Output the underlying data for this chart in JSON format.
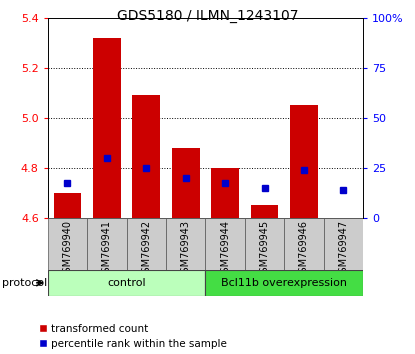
{
  "title": "GDS5180 / ILMN_1243107",
  "samples": [
    "GSM769940",
    "GSM769941",
    "GSM769942",
    "GSM769943",
    "GSM769944",
    "GSM769945",
    "GSM769946",
    "GSM769947"
  ],
  "red_values": [
    4.7,
    5.32,
    5.09,
    4.88,
    4.8,
    4.65,
    5.05,
    4.6
  ],
  "blue_values": [
    4.74,
    4.84,
    4.8,
    4.76,
    4.74,
    4.72,
    4.79,
    4.71
  ],
  "ylim_left": [
    4.6,
    5.4
  ],
  "ylim_right": [
    0,
    100
  ],
  "yticks_left": [
    4.6,
    4.8,
    5.0,
    5.2,
    5.4
  ],
  "yticks_right": [
    0,
    25,
    50,
    75,
    100
  ],
  "ytick_labels_right": [
    "0",
    "25",
    "50",
    "75",
    "100%"
  ],
  "bar_bottom": 4.6,
  "bar_color": "#cc0000",
  "dot_color": "#0000cc",
  "groups": [
    {
      "label": "control",
      "indices": [
        0,
        1,
        2,
        3
      ],
      "color": "#bbffbb"
    },
    {
      "label": "Bcl11b overexpression",
      "indices": [
        4,
        5,
        6,
        7
      ],
      "color": "#44dd44"
    }
  ],
  "protocol_label": "protocol",
  "legend_items": [
    {
      "label": "transformed count",
      "color": "#cc0000"
    },
    {
      "label": "percentile rank within the sample",
      "color": "#0000cc"
    }
  ],
  "sample_bg_color": "#cccccc",
  "plot_bg": "#ffffff",
  "grid_yticks": [
    4.8,
    5.0,
    5.2
  ],
  "bar_width": 0.7,
  "title_fontsize": 10,
  "tick_fontsize": 8,
  "label_fontsize": 7
}
